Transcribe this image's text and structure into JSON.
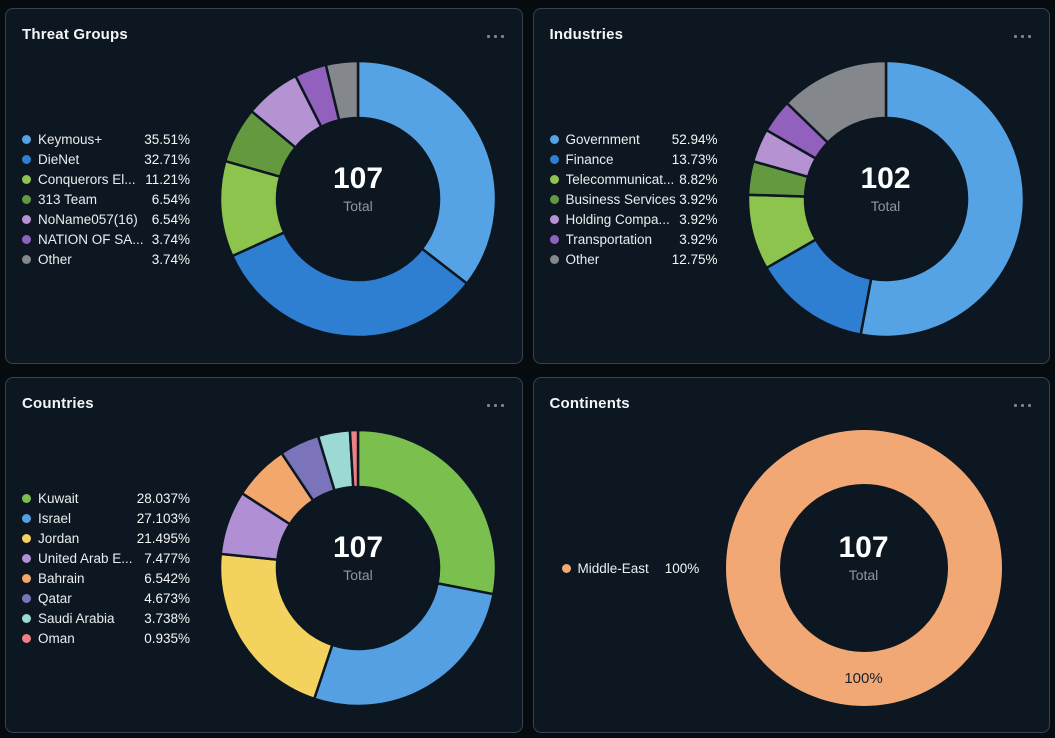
{
  "theme": {
    "panel_background": "#0d1721"
  },
  "ui": {
    "panel_menu_icon": "ellipsis-icon"
  },
  "chart_data": [
    {
      "type": "pie",
      "subtype": "donut",
      "title": "Threat Groups",
      "center_value": "107",
      "center_label": "Total",
      "legend_position": "left",
      "start_angle_deg": 0,
      "direction": "clockwise",
      "slices": [
        {
          "label": "Keymous+",
          "display": "35.51%",
          "value_pct": 35.51,
          "color": "#55a3e5"
        },
        {
          "label": "DieNet",
          "display": "32.71%",
          "value_pct": 32.71,
          "color": "#2e7fd2"
        },
        {
          "label": "Conquerors El...",
          "display": "11.21%",
          "value_pct": 11.21,
          "color": "#8cc44e"
        },
        {
          "label": "313 Team",
          "display": "6.54%",
          "value_pct": 6.54,
          "color": "#649940"
        },
        {
          "label": "NoName057(16)",
          "display": "6.54%",
          "value_pct": 6.54,
          "color": "#b593d2"
        },
        {
          "label": "NATION OF SA...",
          "display": "3.74%",
          "value_pct": 3.74,
          "color": "#9260bd"
        },
        {
          "label": "Other",
          "display": "3.74%",
          "value_pct": 3.74,
          "color": "#84888c"
        }
      ]
    },
    {
      "type": "pie",
      "subtype": "donut",
      "title": "Industries",
      "center_value": "102",
      "center_label": "Total",
      "legend_position": "left",
      "start_angle_deg": 0,
      "direction": "clockwise",
      "slices": [
        {
          "label": "Government",
          "display": "52.94%",
          "value_pct": 52.94,
          "color": "#55a3e5"
        },
        {
          "label": "Finance",
          "display": "13.73%",
          "value_pct": 13.73,
          "color": "#2e7fd2"
        },
        {
          "label": "Telecommunicat...",
          "display": "8.82%",
          "value_pct": 8.82,
          "color": "#8cc44e"
        },
        {
          "label": "Business Services",
          "display": "3.92%",
          "value_pct": 3.92,
          "color": "#649940"
        },
        {
          "label": "Holding Compa...",
          "display": "3.92%",
          "value_pct": 3.92,
          "color": "#b593d2"
        },
        {
          "label": "Transportation",
          "display": "3.92%",
          "value_pct": 3.92,
          "color": "#9260bd"
        },
        {
          "label": "Other",
          "display": "12.75%",
          "value_pct": 12.75,
          "color": "#84888c"
        }
      ]
    },
    {
      "type": "pie",
      "subtype": "donut",
      "title": "Countries",
      "center_value": "107",
      "center_label": "Total",
      "legend_position": "left",
      "start_angle_deg": 0,
      "direction": "clockwise",
      "slices": [
        {
          "label": "Kuwait",
          "display": "28.037%",
          "value_pct": 28.037,
          "color": "#7bc04e"
        },
        {
          "label": "Israel",
          "display": "27.103%",
          "value_pct": 27.103,
          "color": "#55a0e3"
        },
        {
          "label": "Jordan",
          "display": "21.495%",
          "value_pct": 21.495,
          "color": "#f3d25d"
        },
        {
          "label": "United Arab E...",
          "display": "7.477%",
          "value_pct": 7.477,
          "color": "#b18fd4"
        },
        {
          "label": "Bahrain",
          "display": "6.542%",
          "value_pct": 6.542,
          "color": "#f2a76d"
        },
        {
          "label": "Qatar",
          "display": "4.673%",
          "value_pct": 4.673,
          "color": "#7b74ba"
        },
        {
          "label": "Saudi Arabia",
          "display": "3.738%",
          "value_pct": 3.738,
          "color": "#9cd9d4"
        },
        {
          "label": "Oman",
          "display": "0.935%",
          "value_pct": 0.935,
          "color": "#ee8186"
        }
      ]
    },
    {
      "type": "pie",
      "subtype": "donut",
      "title": "Continents",
      "center_value": "107",
      "center_label": "Total",
      "legend_position": "left",
      "start_angle_deg": 0,
      "direction": "clockwise",
      "ring_label": {
        "text": "100%",
        "position": "bottom"
      },
      "slices": [
        {
          "label": "Middle-East",
          "display": "100%",
          "value_pct": 100,
          "color": "#f2a874"
        }
      ]
    }
  ]
}
